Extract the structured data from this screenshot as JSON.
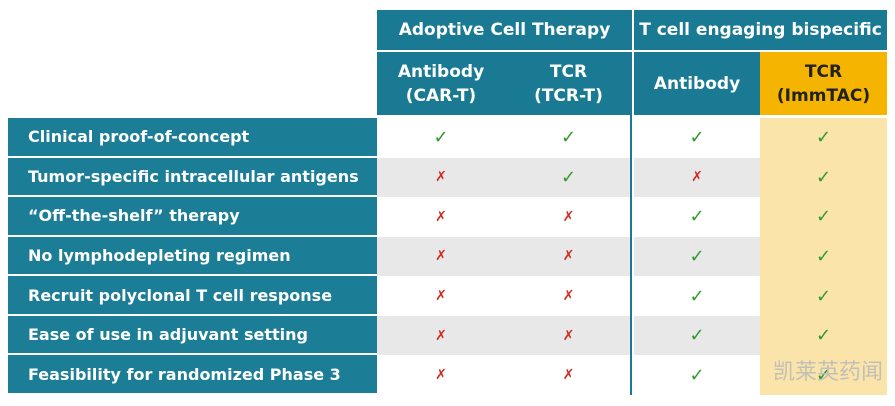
{
  "header": {
    "groups": [
      "Adoptive Cell Therapy",
      "T cell engaging bispecific"
    ],
    "columns": [
      [
        "Antibody",
        "(CAR-T)"
      ],
      [
        "TCR",
        "(TCR-T)"
      ],
      [
        "Antibody"
      ],
      [
        "TCR",
        "(ImmTAC)"
      ]
    ]
  },
  "table": {
    "rows": [
      {
        "label": "Clinical proof-of-concept",
        "cells": [
          "✓",
          "✓",
          "✓",
          "✓"
        ]
      },
      {
        "label": "Tumor-specific intracellular antigens",
        "cells": [
          "✗",
          "✓",
          "✗",
          "✓"
        ]
      },
      {
        "label": "“Off-the-shelf” therapy",
        "cells": [
          "✗",
          "✗",
          "✓",
          "✓"
        ]
      },
      {
        "label": "No lymphodepleting regimen",
        "cells": [
          "✗",
          "✗",
          "✓",
          "✓"
        ]
      },
      {
        "label": "Recruit polyclonal T cell response",
        "cells": [
          "✗",
          "✗",
          "✓",
          "✓"
        ]
      },
      {
        "label": "Ease of use in adjuvant setting",
        "cells": [
          "✗",
          "✗",
          "✓",
          "✓"
        ]
      },
      {
        "label": "Feasibility for randomized Phase 3",
        "cells": [
          "✗",
          "✗",
          "✓",
          "✓"
        ]
      }
    ]
  },
  "watermark": "凯莱英药闻"
}
